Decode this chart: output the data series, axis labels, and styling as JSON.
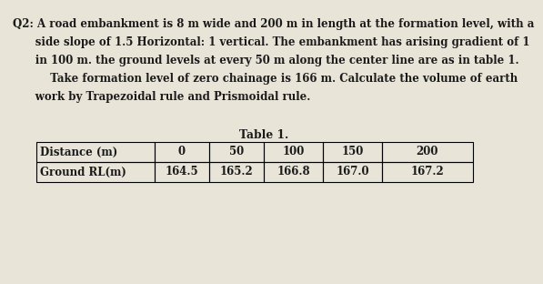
{
  "paragraph_lines": [
    [
      "Q2:",
      "A road embankment is 8 m wide and 200 m in length at the formation level, with a"
    ],
    [
      "",
      "side slope of 1.5 Horizontal: 1 vertical. The embankment has arising gradient of 1"
    ],
    [
      "",
      "in 100 m. the ground levels at every 50 m along the center line are as in table 1."
    ],
    [
      "    ",
      "Take formation level of zero chainage is 166 m. Calculate the volume of earth"
    ],
    [
      "",
      "work by Trapezoidal rule and Prismoidal rule."
    ]
  ],
  "table_title": "Table 1.",
  "table_headers": [
    "Distance (m)",
    "0",
    "50",
    "100",
    "150",
    "200"
  ],
  "table_row": [
    "Ground RL(m)",
    "164.5",
    "165.2",
    "166.8",
    "167.0",
    "167.2"
  ],
  "background_color": "#e8e4d8",
  "text_color": "#1a1a1a",
  "font_size_body": 8.5,
  "font_size_table": 8.5,
  "font_size_table_title": 8.8
}
